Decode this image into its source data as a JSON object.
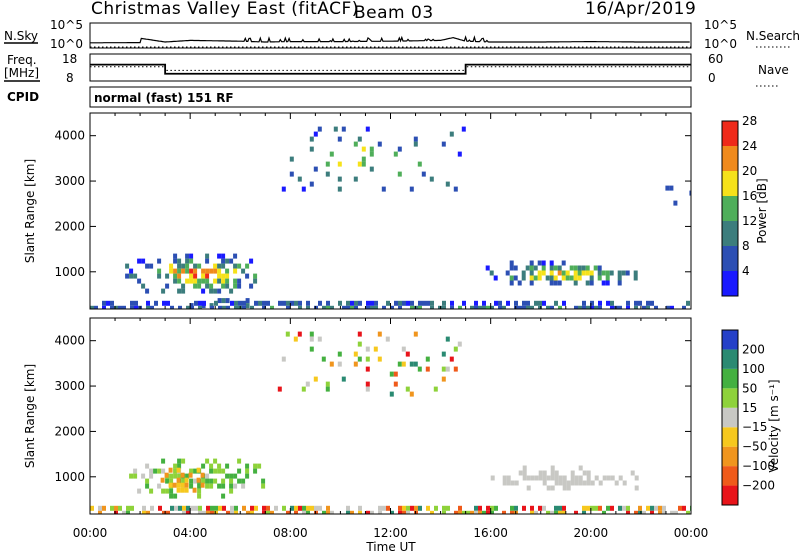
{
  "header": {
    "title": "Christmas Valley East (fitACF)",
    "beam": "Beam 03",
    "date": "16/Apr/2019"
  },
  "side_labels": {
    "nsky": "N.Sky",
    "nsearch": "N.Search",
    "freq_line1": "Freq.",
    "freq_line2": "[MHz]",
    "nave": "Nave",
    "cpid": "CPID",
    "cpid_value": "normal (fast) 151 RF"
  },
  "chart_data": [
    {
      "type": "line",
      "name": "noise-panel",
      "ylabel_left": "N.Sky",
      "ylabel_right": "N.Search",
      "yticks_left": [
        "10^5",
        "10^0"
      ],
      "yticks_right": [
        "10^5",
        "10^0"
      ],
      "x_hours": [
        0,
        2,
        2.05,
        3,
        4,
        6,
        7,
        8,
        10,
        12,
        14,
        14.5,
        15,
        16,
        18,
        20,
        22,
        24
      ],
      "nsky_log": [
        0.3,
        0.35,
        1.4,
        0.5,
        0.9,
        0.7,
        0.5,
        0.6,
        0.6,
        0.7,
        0.9,
        1.6,
        0.7,
        0.5,
        0.5,
        0.6,
        0.5,
        0.5
      ]
    },
    {
      "type": "line",
      "name": "frequency-panel",
      "ylabel_left": "Freq. [MHz]",
      "ylabel_right": "Nave",
      "yticks_left": [
        "18",
        "8"
      ],
      "yticks_right": [
        "60",
        "0"
      ],
      "freq_steps": [
        {
          "from": 0,
          "to": 3,
          "mhz": 14.4
        },
        {
          "from": 3,
          "to": 15,
          "mhz": 10.6
        },
        {
          "from": 15,
          "to": 24,
          "mhz": 14.4
        }
      ],
      "nave_steps": [
        {
          "from": 0,
          "to": 3,
          "value": 33
        },
        {
          "from": 3,
          "to": 15,
          "value": 24
        },
        {
          "from": 15,
          "to": 24,
          "value": 33
        }
      ]
    },
    {
      "type": "heatmap",
      "name": "power-panel",
      "ylabel": "Slant Range [km]",
      "yticks": [
        "1000",
        "2000",
        "3000",
        "4000"
      ],
      "ylim": [
        180,
        4500
      ],
      "xlim_hours": [
        0,
        24
      ],
      "colorbar_label": "Power [dB]",
      "colorbar_ticks": [
        "4",
        "8",
        "12",
        "16",
        "20",
        "24",
        "28"
      ],
      "colorbar_colors": [
        "#1a1aff",
        "#2c4fb3",
        "#3c7d7d",
        "#4fae5a",
        "#f6e21a",
        "#f08a1c",
        "#ef2a1a"
      ],
      "regions": [
        {
          "t0": 1.4,
          "t1": 6.9,
          "r0": 600,
          "r1": 1400,
          "core": 0.7
        },
        {
          "t0": 3.5,
          "t1": 7.0,
          "r0": 300,
          "r1": 420,
          "core": 0.8
        },
        {
          "t0": 15.8,
          "t1": 21.8,
          "r0": 750,
          "r1": 1250,
          "core": 0.55
        },
        {
          "t0": 0,
          "t1": 24,
          "r0": 200,
          "r1": 360,
          "core": 0.2
        },
        {
          "t0": 22.5,
          "t1": 24,
          "r0": 2500,
          "r1": 2900,
          "core": 0.1
        },
        {
          "t0": 7.5,
          "t1": 15.0,
          "r0": 2800,
          "r1": 4200,
          "core": 0.4
        }
      ]
    },
    {
      "type": "heatmap",
      "name": "velocity-panel",
      "ylabel": "Slant Range [km]",
      "yticks": [
        "1000",
        "2000",
        "3000",
        "4000"
      ],
      "ylim": [
        180,
        4500
      ],
      "xlim_hours": [
        0,
        24
      ],
      "xticks": [
        "00:00",
        "04:00",
        "08:00",
        "12:00",
        "16:00",
        "20:00",
        "00:00"
      ],
      "xlabel": "Time UT",
      "colorbar_label": "Velocity [m s⁻¹]",
      "colorbar_ticks": [
        "200",
        "100",
        "50",
        "15",
        "−15",
        "−50",
        "−100",
        "−200"
      ],
      "colorbar_colors": [
        "#2540c8",
        "#2a8a72",
        "#44b040",
        "#8ed23a",
        "#c8c8c4",
        "#f6c81e",
        "#f0951e",
        "#ef5a1a",
        "#e8141a"
      ],
      "regions": [
        {
          "t0": 1.4,
          "t1": 6.9,
          "r0": 600,
          "r1": 1400,
          "dominant": "green"
        },
        {
          "t0": 2.5,
          "t1": 4.5,
          "r0": 650,
          "r1": 1200,
          "dominant": "yellow"
        },
        {
          "t0": 16.0,
          "t1": 21.8,
          "r0": 750,
          "r1": 1250,
          "dominant": "grey"
        },
        {
          "t0": 0,
          "t1": 24,
          "r0": 200,
          "r1": 360,
          "dominant": "mixed"
        },
        {
          "t0": 7.5,
          "t1": 15.0,
          "r0": 2800,
          "r1": 4200,
          "dominant": "mixed"
        }
      ]
    }
  ]
}
